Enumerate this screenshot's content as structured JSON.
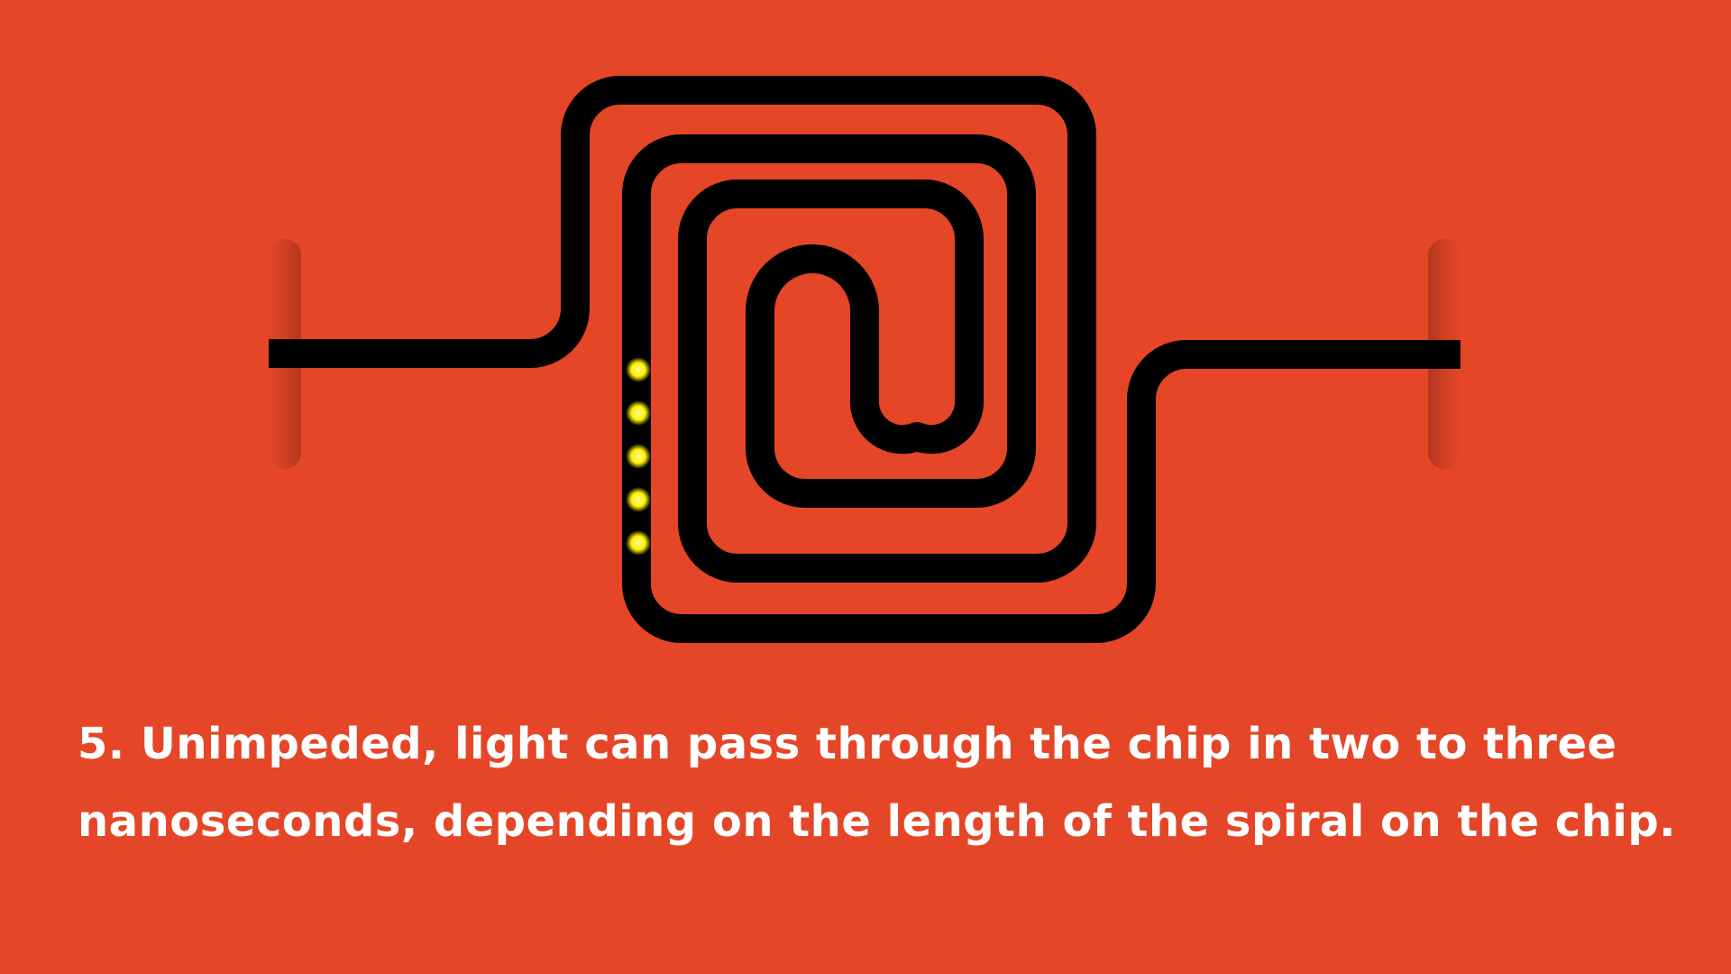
{
  "colors": {
    "background": "#e54627",
    "waveguide": "#000000",
    "light_pulse": "#fff200",
    "text": "#ffffff"
  },
  "diagram": {
    "subject": "spiral-waveguide-chip",
    "light_pulse_count": 5
  },
  "caption": {
    "line1": "5. Unimpeded, light can pass through the chip in two to three",
    "line2": "nanoseconds, depending on the length of the spiral on the chip."
  }
}
